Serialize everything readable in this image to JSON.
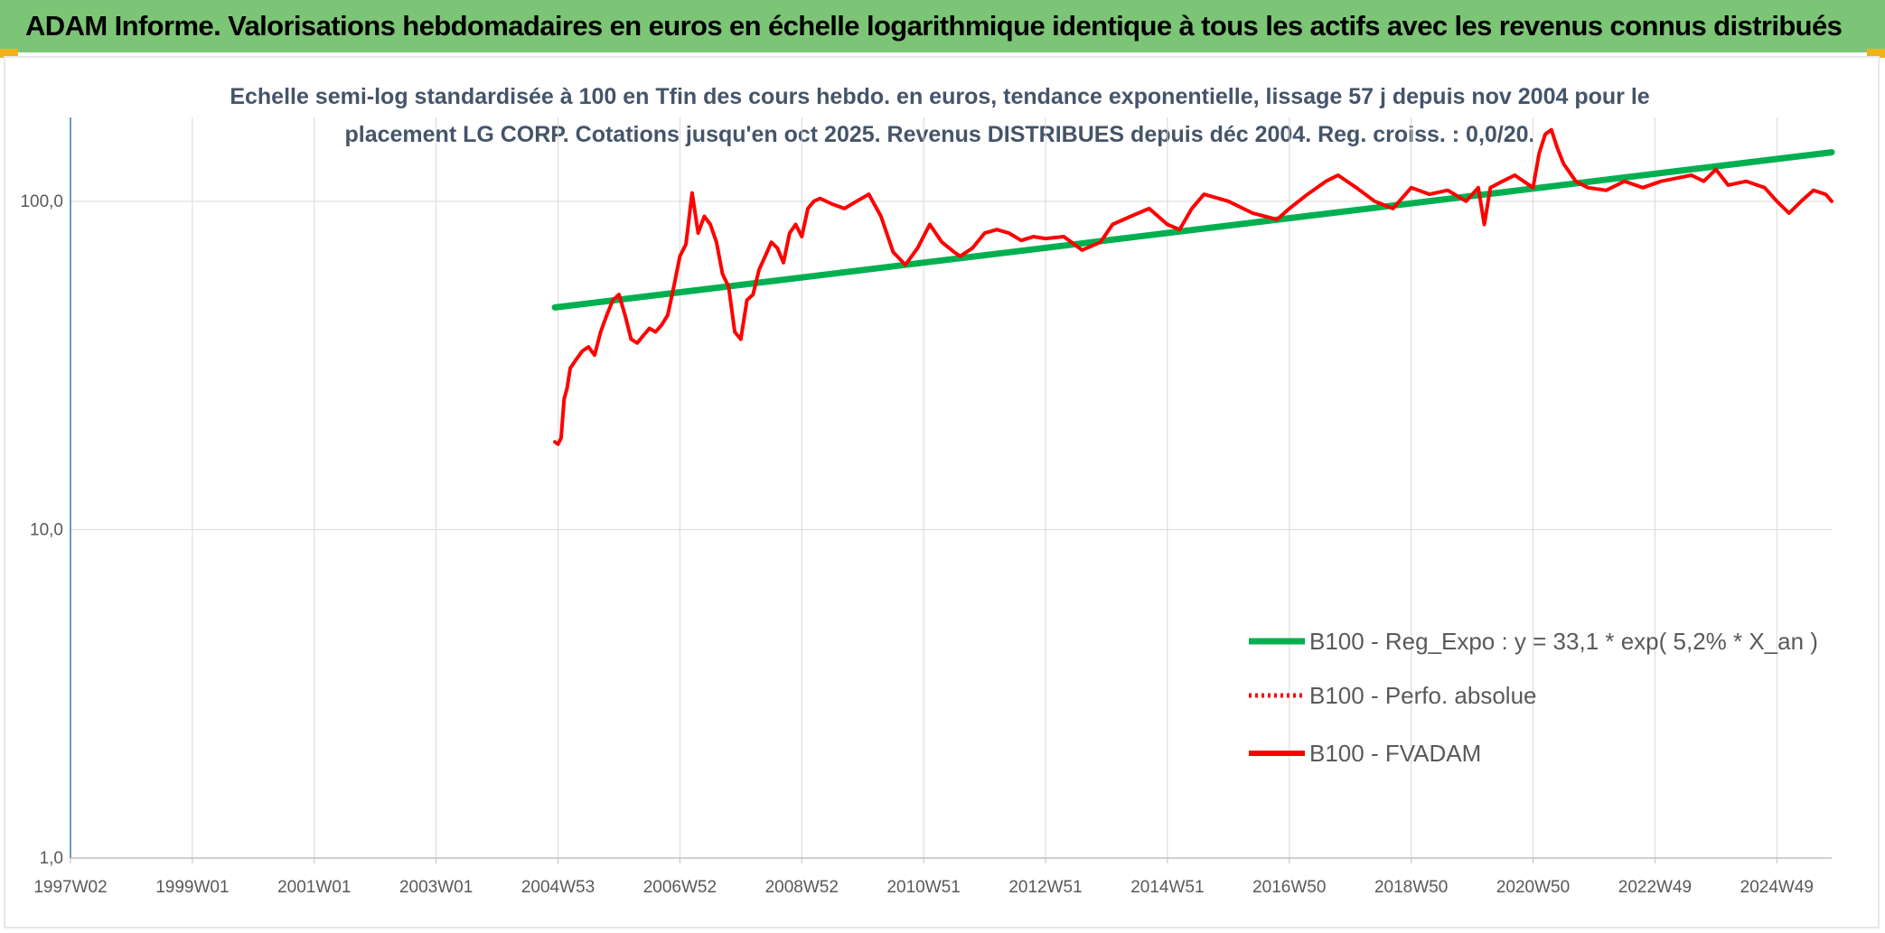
{
  "header": {
    "title": "ADAM Informe. Valorisations hebdomadaires en euros en échelle logarithmique identique à tous les actifs avec les revenus connus distribués"
  },
  "colors": {
    "banner": "#7cc576",
    "corner_accent": "#f1b11a",
    "regression_line": "#00b050",
    "price_line": "#ff0000",
    "axis_line": "#4472c4",
    "grid": "#d9d9d9"
  },
  "chart_data": {
    "type": "line",
    "subtitle_lines": [
      "Echelle semi-log standardisée à 100 en Tfin des cours hebdo. en euros, tendance exponentielle, lissage 57 j depuis nov 2004 pour le",
      "placement LG CORP. Cotations jusqu'en oct 2025. Revenus DISTRIBUES depuis déc 2004. Reg. croiss. : 0,0/20."
    ],
    "y_scale": "log",
    "ylim": [
      1,
      180
    ],
    "yticks": [
      1,
      10,
      100
    ],
    "ytick_labels": [
      "1,0",
      "10,0",
      "100,0"
    ],
    "xlim": [
      1997.0,
      2025.9
    ],
    "xtick_labels": [
      "1997W02",
      "1999W01",
      "2001W01",
      "2003W01",
      "2004W53",
      "2006W52",
      "2008W52",
      "2010W51",
      "2012W51",
      "2014W51",
      "2016W50",
      "2018W50",
      "2020W50",
      "2022W49",
      "2024W49"
    ],
    "xtick_positions": [
      1997.0,
      1999.0,
      2001.0,
      2003.0,
      2005.0,
      2007.0,
      2009.0,
      2011.0,
      2013.0,
      2015.0,
      2017.0,
      2019.0,
      2021.0,
      2023.0,
      2025.0
    ],
    "grid": true,
    "legend_position": "lower-right",
    "series": [
      {
        "name": "B100 - Reg_Expo : y = 33,1 * exp( 5,2% *  X_an )",
        "style": "solid-thick",
        "color": "#00b050",
        "x": [
          2004.95,
          2025.9
        ],
        "y": [
          47.5,
          141
        ]
      },
      {
        "name": "B100 - Perfo. absolue",
        "style": "dotted",
        "color": "#ff0000",
        "x": [],
        "y": []
      },
      {
        "name": "B100 - FVADAM",
        "style": "solid",
        "color": "#ff0000",
        "x": [
          2004.95,
          2005.0,
          2005.05,
          2005.1,
          2005.15,
          2005.2,
          2005.3,
          2005.4,
          2005.5,
          2005.6,
          2005.7,
          2005.8,
          2005.9,
          2006.0,
          2006.1,
          2006.2,
          2006.3,
          2006.4,
          2006.5,
          2006.6,
          2006.7,
          2006.8,
          2006.9,
          2007.0,
          2007.1,
          2007.2,
          2007.3,
          2007.4,
          2007.5,
          2007.6,
          2007.7,
          2007.8,
          2007.9,
          2008.0,
          2008.1,
          2008.2,
          2008.3,
          2008.4,
          2008.5,
          2008.6,
          2008.7,
          2008.8,
          2008.9,
          2009.0,
          2009.1,
          2009.2,
          2009.3,
          2009.5,
          2009.7,
          2009.9,
          2010.1,
          2010.3,
          2010.5,
          2010.7,
          2010.9,
          2011.1,
          2011.3,
          2011.5,
          2011.6,
          2011.8,
          2012.0,
          2012.2,
          2012.4,
          2012.6,
          2012.8,
          2013.0,
          2013.3,
          2013.6,
          2013.9,
          2014.1,
          2014.4,
          2014.7,
          2015.0,
          2015.2,
          2015.4,
          2015.6,
          2016.0,
          2016.4,
          2016.8,
          2017.0,
          2017.3,
          2017.6,
          2017.8,
          2018.1,
          2018.4,
          2018.7,
          2019.0,
          2019.3,
          2019.6,
          2019.9,
          2020.1,
          2020.2,
          2020.3,
          2020.5,
          2020.7,
          2021.0,
          2021.1,
          2021.2,
          2021.3,
          2021.4,
          2021.5,
          2021.7,
          2021.9,
          2022.2,
          2022.5,
          2022.8,
          2023.1,
          2023.4,
          2023.6,
          2023.8,
          2024.0,
          2024.2,
          2024.5,
          2024.8,
          2025.0,
          2025.2,
          2025.4,
          2025.6,
          2025.8,
          2025.9
        ],
        "y": [
          18.5,
          18.2,
          19,
          25,
          27,
          31,
          33,
          35,
          36,
          34,
          40,
          45,
          50,
          52,
          45,
          38,
          37,
          39,
          41,
          40,
          42,
          45,
          55,
          68,
          74,
          106,
          80,
          90,
          85,
          75,
          60,
          55,
          40,
          38,
          50,
          52,
          62,
          68,
          75,
          72,
          65,
          80,
          85,
          78,
          95,
          100,
          102,
          98,
          95,
          100,
          105,
          90,
          70,
          64,
          72,
          85,
          75,
          70,
          68,
          72,
          80,
          82,
          80,
          76,
          78,
          77,
          78,
          71,
          75,
          85,
          90,
          95,
          85,
          82,
          95,
          105,
          100,
          92,
          88,
          95,
          105,
          115,
          120,
          110,
          100,
          95,
          110,
          105,
          108,
          100,
          110,
          85,
          110,
          115,
          120,
          110,
          140,
          160,
          165,
          145,
          130,
          115,
          110,
          108,
          115,
          110,
          115,
          118,
          120,
          115,
          125,
          112,
          115,
          110,
          100,
          92,
          100,
          108,
          105,
          100
        ]
      }
    ]
  }
}
